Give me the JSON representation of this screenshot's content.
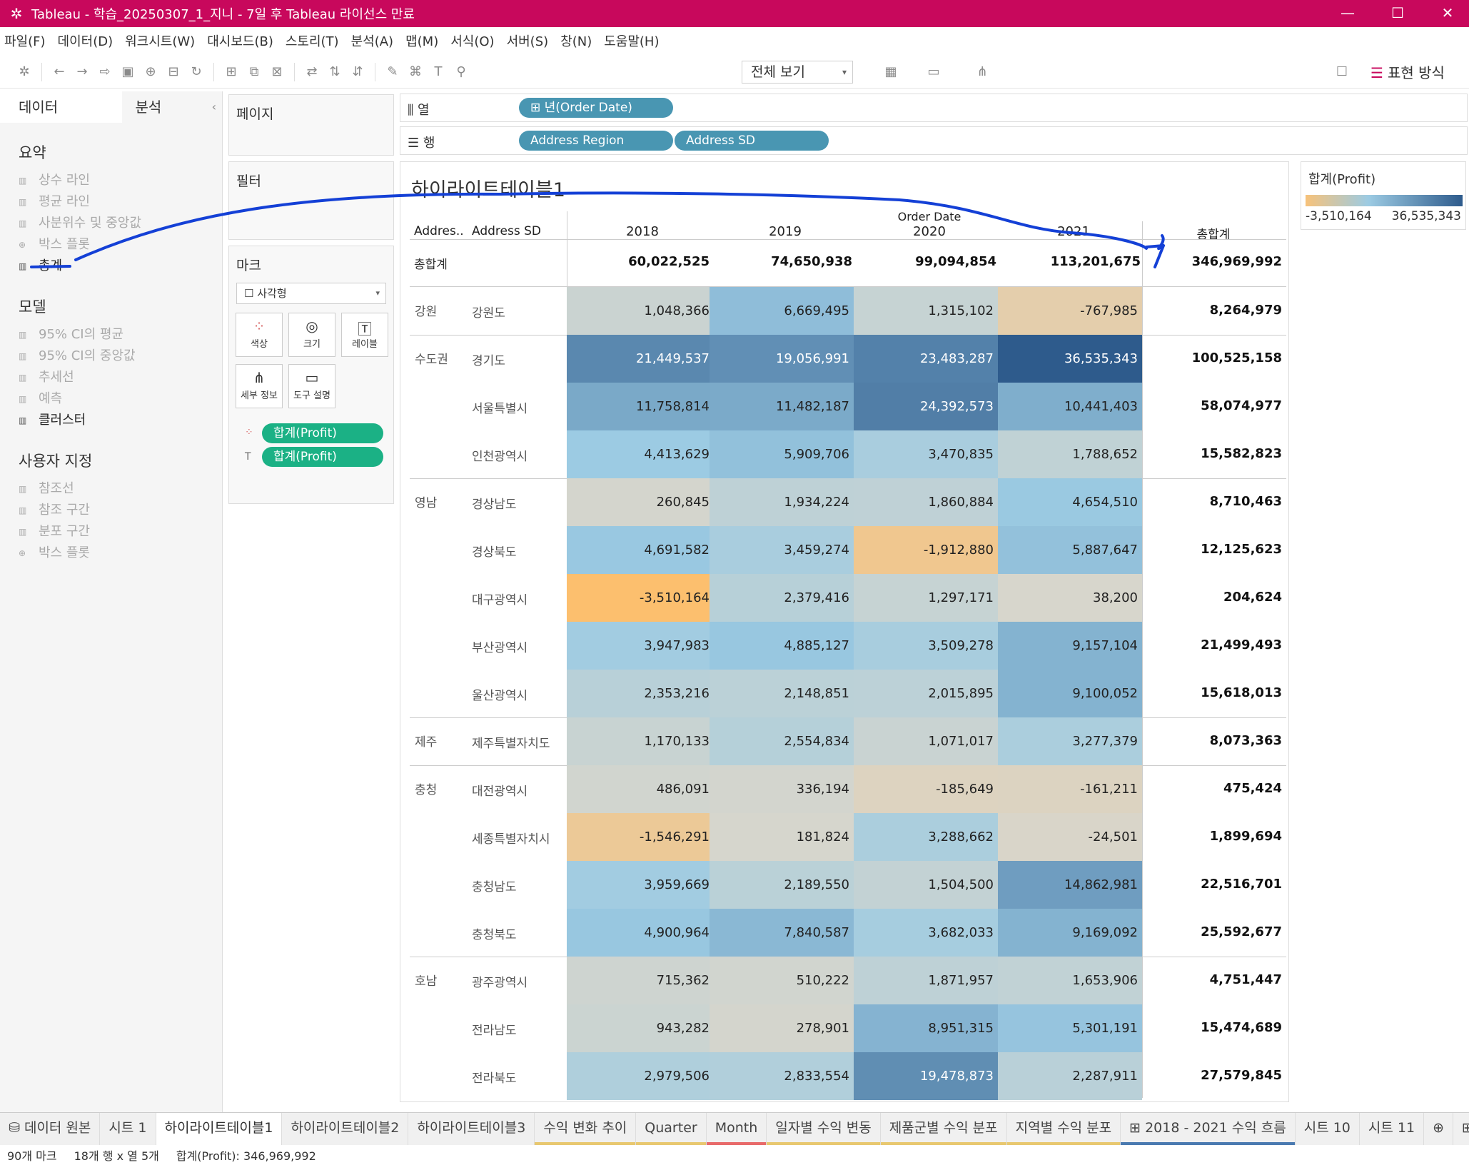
{
  "window": {
    "title": "Tableau - 학습_20250307_1_지니 - 7일 후 Tableau 라이선스 만료"
  },
  "menu": [
    "파일(F)",
    "데이터(D)",
    "워크시트(W)",
    "대시보드(B)",
    "스토리(T)",
    "분석(A)",
    "맵(M)",
    "서식(O)",
    "서버(S)",
    "창(N)",
    "도움말(H)"
  ],
  "toolbar": {
    "view_select": "전체 보기",
    "show_me": "표현 방식"
  },
  "left_panel": {
    "tab_data": "데이터",
    "tab_analysis": "분석",
    "summary_title": "요약",
    "summary_items": [
      "상수 라인",
      "평균 라인",
      "사분위수 및 중앙값",
      "박스 플롯",
      "총계"
    ],
    "model_title": "모델",
    "model_items": [
      "95% CI의 평균",
      "95% CI의 중앙값",
      "추세선",
      "예측",
      "클러스터"
    ],
    "custom_title": "사용자 지정",
    "custom_items": [
      "참조선",
      "참조 구간",
      "분포 구간",
      "박스 플롯"
    ]
  },
  "cards": {
    "pages": "페이지",
    "filters": "필터",
    "marks": "마크",
    "mark_type": "사각형",
    "buttons": [
      "색상",
      "크기",
      "레이블",
      "세부 정보",
      "도구 설명"
    ],
    "pills": [
      "합계(Profit)",
      "합계(Profit)"
    ]
  },
  "shelves": {
    "columns_label": "열",
    "rows_label": "행",
    "columns_pills": [
      "년(Order Date)"
    ],
    "rows_pills": [
      "Address Region",
      "Address SD"
    ]
  },
  "viz": {
    "title": "하이라이트테이블1",
    "header_region": "Addres..",
    "header_sd": "Address SD",
    "header_order_date": "Order Date",
    "years": [
      "2018",
      "2019",
      "2020",
      "2021"
    ],
    "total_label": "총합계",
    "grand_total_row": {
      "label": "총합계",
      "values": [
        "60,022,525",
        "74,650,938",
        "99,094,854",
        "113,201,675"
      ],
      "total": "346,969,992"
    },
    "rows": [
      {
        "region": "강원",
        "sd": "강원도",
        "values": [
          "1,048,366",
          "6,669,495",
          "1,315,102",
          "-767,985"
        ],
        "total": "8,264,979"
      },
      {
        "region": "수도권",
        "sd": "경기도",
        "values": [
          "21,449,537",
          "19,056,991",
          "23,483,287",
          "36,535,343"
        ],
        "total": "100,525,158"
      },
      {
        "region": "",
        "sd": "서울특별시",
        "values": [
          "11,758,814",
          "11,482,187",
          "24,392,573",
          "10,441,403"
        ],
        "total": "58,074,977"
      },
      {
        "region": "",
        "sd": "인천광역시",
        "values": [
          "4,413,629",
          "5,909,706",
          "3,470,835",
          "1,788,652"
        ],
        "total": "15,582,823"
      },
      {
        "region": "영남",
        "sd": "경상남도",
        "values": [
          "260,845",
          "1,934,224",
          "1,860,884",
          "4,654,510"
        ],
        "total": "8,710,463"
      },
      {
        "region": "",
        "sd": "경상북도",
        "values": [
          "4,691,582",
          "3,459,274",
          "-1,912,880",
          "5,887,647"
        ],
        "total": "12,125,623"
      },
      {
        "region": "",
        "sd": "대구광역시",
        "values": [
          "-3,510,164",
          "2,379,416",
          "1,297,171",
          "38,200"
        ],
        "total": "204,624"
      },
      {
        "region": "",
        "sd": "부산광역시",
        "values": [
          "3,947,983",
          "4,885,127",
          "3,509,278",
          "9,157,104"
        ],
        "total": "21,499,493"
      },
      {
        "region": "",
        "sd": "울산광역시",
        "values": [
          "2,353,216",
          "2,148,851",
          "2,015,895",
          "9,100,052"
        ],
        "total": "15,618,013"
      },
      {
        "region": "제주",
        "sd": "제주특별자치도",
        "values": [
          "1,170,133",
          "2,554,834",
          "1,071,017",
          "3,277,379"
        ],
        "total": "8,073,363"
      },
      {
        "region": "충청",
        "sd": "대전광역시",
        "values": [
          "486,091",
          "336,194",
          "-185,649",
          "-161,211"
        ],
        "total": "475,424"
      },
      {
        "region": "",
        "sd": "세종특별자치시",
        "values": [
          "-1,546,291",
          "181,824",
          "3,288,662",
          "-24,501"
        ],
        "total": "1,899,694"
      },
      {
        "region": "",
        "sd": "충청남도",
        "values": [
          "3,959,669",
          "2,189,550",
          "1,504,500",
          "14,862,981"
        ],
        "total": "22,516,701"
      },
      {
        "region": "",
        "sd": "충청북도",
        "values": [
          "4,900,964",
          "7,840,587",
          "3,682,033",
          "9,169,092"
        ],
        "total": "25,592,677"
      },
      {
        "region": "호남",
        "sd": "광주광역시",
        "values": [
          "715,362",
          "510,222",
          "1,871,957",
          "1,653,906"
        ],
        "total": "4,751,447"
      },
      {
        "region": "",
        "sd": "전라남도",
        "values": [
          "943,282",
          "278,901",
          "8,951,315",
          "5,301,191"
        ],
        "total": "15,474,689"
      },
      {
        "region": "",
        "sd": "전라북도",
        "values": [
          "2,979,506",
          "2,833,554",
          "19,478,873",
          "2,287,911"
        ],
        "total": "27,579,845"
      }
    ]
  },
  "legend": {
    "title": "합계(Profit)",
    "min": "-3,510,164",
    "max": "36,535,343",
    "colors": [
      "#f7c27a",
      "#d4d4c8",
      "#9ccbe3",
      "#2e5b8c"
    ]
  },
  "sheet_tabs": [
    {
      "label": "데이터 원본",
      "color": ""
    },
    {
      "label": "시트 1",
      "color": ""
    },
    {
      "label": "하이라이트테이블1",
      "color": "",
      "active": true
    },
    {
      "label": "하이라이트테이블2",
      "color": ""
    },
    {
      "label": "하이라이트테이블3",
      "color": ""
    },
    {
      "label": "수익 변화 추이",
      "color": "#e8c870"
    },
    {
      "label": "Quarter",
      "color": "#e8c870"
    },
    {
      "label": "Month",
      "color": "#e86a6a"
    },
    {
      "label": "일자별 수익 변동",
      "color": "#e8c870"
    },
    {
      "label": "제품군별 수익 분포",
      "color": "#e8c870"
    },
    {
      "label": "지역별 수익 분포",
      "color": "#e8c870"
    },
    {
      "label": "2018 - 2021 수익 흐름",
      "color": "#4a7ab0"
    },
    {
      "label": "시트 10",
      "color": ""
    },
    {
      "label": "시트 11",
      "color": ""
    }
  ],
  "status": {
    "marks": "90개 마크",
    "rows_cols": "18개 행  x  열 5개",
    "sum": "합계(Profit): 346,969,992"
  }
}
